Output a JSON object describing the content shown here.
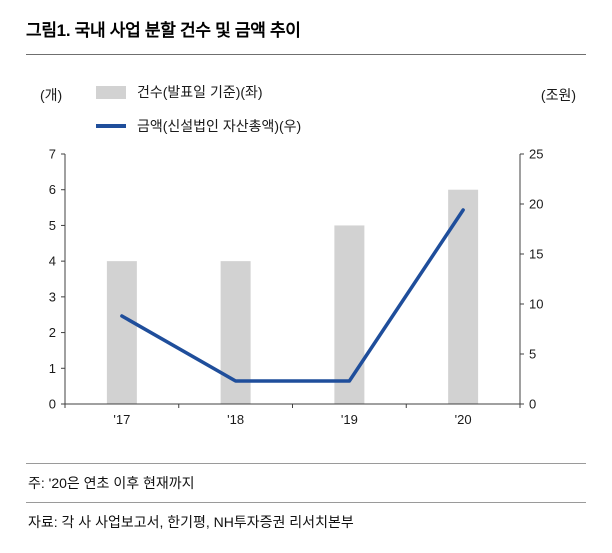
{
  "title": "그림1. 국내 사업 분할 건수 및 금액 추이",
  "notes": {
    "note": "주: '20은 연초 이후 현재까지",
    "source": "자료: 각 사 사업보고서, 한기평, NH투자증권 리서치본부"
  },
  "chart_data": {
    "type": "bar+line combo",
    "categories": [
      "'17",
      "'18",
      "'19",
      "'20"
    ],
    "series": [
      {
        "name": "건수(발표일 기준)(좌)",
        "type": "bar",
        "axis": "left",
        "values": [
          4,
          4,
          5,
          6
        ],
        "color": "#d2d2d2"
      },
      {
        "name": "금액(신설법인 자산총액)(우)",
        "type": "line",
        "axis": "right",
        "values": [
          8.8,
          2.3,
          2.3,
          19.4
        ],
        "color": "#1f4e9b"
      }
    ],
    "left_axis": {
      "label": "(개)",
      "min": 0,
      "max": 7,
      "ticks": [
        0,
        1,
        2,
        3,
        4,
        5,
        6,
        7
      ]
    },
    "right_axis": {
      "label": "(조원)",
      "min": 0,
      "max": 25,
      "ticks": [
        0,
        5,
        10,
        15,
        20,
        25
      ]
    },
    "grid": false,
    "legend_position": "top-left"
  }
}
